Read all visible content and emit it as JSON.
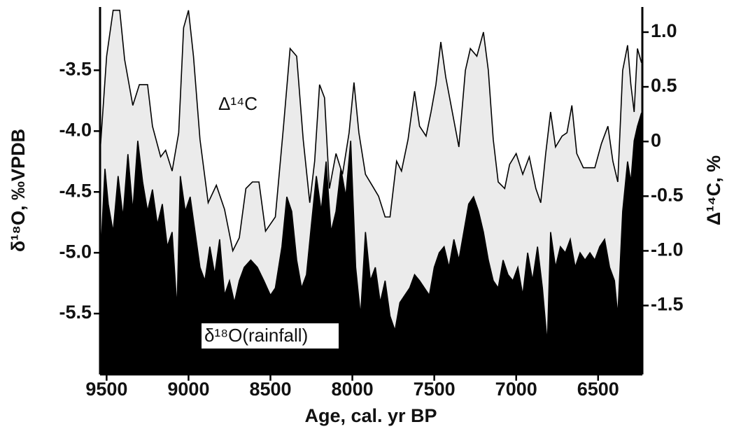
{
  "chart_data": {
    "type": "area",
    "xlabel": "Age, cal. yr BP",
    "ylabel": "δ¹⁸O,  ‰VPDB",
    "y2label": "Δ¹⁴C, %",
    "annotations": [
      "Δ¹⁴C",
      "δ¹⁸O(rainfall)"
    ],
    "xlim": [
      9540,
      6230
    ],
    "xticks": [
      9500,
      9000,
      8500,
      8000,
      7500,
      7000,
      6500
    ],
    "ylim": [
      -6.0,
      -2.98
    ],
    "yticks": [
      -3.5,
      {
        "value": -4,
        "label": "-4.0"
      },
      -4.5,
      {
        "value": -5,
        "label": "-5.0"
      },
      -5.5
    ],
    "y2lim": [
      -2.13,
      1.23
    ],
    "y2ticks": [
      {
        "value": 1,
        "label": "1.0"
      },
      0.5,
      0,
      -0.5,
      {
        "value": -1,
        "label": "-1.0"
      },
      -1.5
    ],
    "series": [
      {
        "name": "Δ¹⁴C",
        "axis": "y2",
        "color": "#000000",
        "fill": "#ebebeb",
        "x": [
          9538,
          9500,
          9460,
          9420,
          9390,
          9340,
          9300,
          9250,
          9220,
          9170,
          9140,
          9100,
          9060,
          9030,
          9000,
          8970,
          8930,
          8880,
          8830,
          8780,
          8730,
          8690,
          8650,
          8610,
          8570,
          8530,
          8470,
          8420,
          8380,
          8340,
          8300,
          8260,
          8230,
          8200,
          8170,
          8140,
          8100,
          8060,
          8020,
          7990,
          7960,
          7920,
          7880,
          7840,
          7800,
          7770,
          7730,
          7700,
          7660,
          7620,
          7590,
          7550,
          7520,
          7490,
          7460,
          7430,
          7390,
          7350,
          7310,
          7280,
          7240,
          7200,
          7170,
          7140,
          7110,
          7070,
          7040,
          7000,
          6960,
          6920,
          6880,
          6850,
          6820,
          6790,
          6760,
          6720,
          6690,
          6660,
          6630,
          6590,
          6560,
          6520,
          6480,
          6440,
          6410,
          6380,
          6350,
          6320,
          6300,
          6280,
          6260,
          6235
        ],
        "values": [
          -0.05,
          0.78,
          1.2,
          1.2,
          0.75,
          0.33,
          0.52,
          0.52,
          0.14,
          -0.14,
          -0.08,
          -0.27,
          0.08,
          1.04,
          1.2,
          0.78,
          0.02,
          -0.56,
          -0.4,
          -0.62,
          -1.0,
          -0.88,
          -0.43,
          -0.37,
          -0.37,
          -0.82,
          -0.69,
          0.14,
          0.85,
          0.78,
          0.02,
          -0.56,
          -0.18,
          0.52,
          0.4,
          -0.43,
          -0.11,
          -0.3,
          0.08,
          0.54,
          0.08,
          -0.3,
          -0.4,
          -0.5,
          -0.69,
          -0.69,
          -0.18,
          -0.27,
          0.02,
          0.46,
          0.14,
          0.05,
          0.27,
          0.52,
          0.91,
          0.59,
          0.27,
          -0.05,
          0.65,
          0.85,
          0.78,
          1.0,
          0.65,
          0.02,
          -0.37,
          -0.43,
          -0.21,
          -0.11,
          -0.3,
          -0.14,
          -0.43,
          -0.56,
          -0.11,
          0.27,
          -0.05,
          0.05,
          0.08,
          0.33,
          -0.11,
          -0.24,
          -0.24,
          -0.24,
          -0.02,
          0.14,
          -0.18,
          -0.37,
          0.65,
          0.88,
          0.52,
          0.27,
          0.85,
          0.72
        ]
      },
      {
        "name": "δ¹⁸O(rainfall)",
        "axis": "y",
        "color": "#000000",
        "fill": "#000000",
        "x": [
          9538,
          9510,
          9490,
          9460,
          9430,
          9400,
          9370,
          9340,
          9310,
          9280,
          9250,
          9220,
          9190,
          9160,
          9130,
          9100,
          9070,
          9050,
          9020,
          8990,
          8960,
          8930,
          8900,
          8870,
          8840,
          8810,
          8780,
          8750,
          8720,
          8690,
          8660,
          8620,
          8580,
          8540,
          8500,
          8470,
          8430,
          8400,
          8370,
          8340,
          8310,
          8280,
          8250,
          8220,
          8190,
          8160,
          8130,
          8100,
          8070,
          8040,
          8010,
          7980,
          7950,
          7920,
          7890,
          7860,
          7830,
          7800,
          7770,
          7740,
          7710,
          7680,
          7650,
          7620,
          7590,
          7560,
          7530,
          7500,
          7470,
          7440,
          7410,
          7380,
          7350,
          7320,
          7290,
          7260,
          7230,
          7200,
          7170,
          7140,
          7110,
          7080,
          7050,
          7020,
          6990,
          6960,
          6930,
          6900,
          6870,
          6840,
          6810,
          6790,
          6760,
          6730,
          6700,
          6670,
          6640,
          6610,
          6580,
          6550,
          6520,
          6490,
          6460,
          6430,
          6400,
          6380,
          6350,
          6320,
          6300,
          6280,
          6260,
          6235
        ],
        "values": [
          -5.06,
          -4.31,
          -4.6,
          -4.83,
          -4.37,
          -4.71,
          -4.19,
          -4.66,
          -4.08,
          -4.42,
          -4.66,
          -4.48,
          -4.77,
          -4.6,
          -4.95,
          -4.83,
          -5.47,
          -4.37,
          -4.66,
          -4.54,
          -4.83,
          -5.12,
          -5.23,
          -4.95,
          -5.18,
          -4.89,
          -5.35,
          -5.23,
          -5.41,
          -5.23,
          -5.12,
          -5.06,
          -5.12,
          -5.23,
          -5.35,
          -5.29,
          -4.95,
          -4.54,
          -4.66,
          -5.06,
          -5.29,
          -5.18,
          -4.77,
          -4.37,
          -4.66,
          -4.25,
          -4.83,
          -4.66,
          -4.31,
          -4.54,
          -4.08,
          -5.12,
          -5.52,
          -4.83,
          -5.23,
          -5.12,
          -5.41,
          -5.23,
          -5.52,
          -5.64,
          -5.41,
          -5.35,
          -5.29,
          -5.18,
          -5.23,
          -5.29,
          -5.35,
          -5.12,
          -5.0,
          -4.95,
          -5.12,
          -4.89,
          -5.06,
          -4.83,
          -4.6,
          -4.54,
          -4.66,
          -4.83,
          -5.06,
          -5.23,
          -5.29,
          -5.06,
          -5.18,
          -5.23,
          -5.12,
          -5.35,
          -5.0,
          -5.23,
          -4.95,
          -5.29,
          -5.75,
          -4.83,
          -5.12,
          -4.95,
          -5.0,
          -4.89,
          -5.12,
          -5.0,
          -5.06,
          -5.0,
          -5.06,
          -4.95,
          -4.89,
          -5.12,
          -5.23,
          -5.52,
          -4.66,
          -4.25,
          -4.42,
          -4.08,
          -3.96,
          -3.85
        ]
      }
    ]
  }
}
